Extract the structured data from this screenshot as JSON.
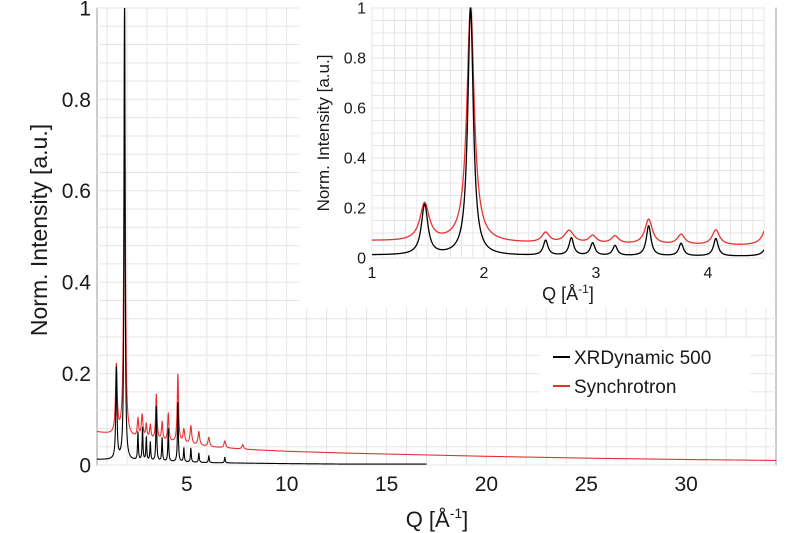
{
  "chart_data": [
    {
      "type": "line",
      "panel": "main",
      "xlabel": "Q [Å",
      "xlabel_sup": "-1",
      "xlabel_end": "]",
      "ylabel": "Norm. Intensity [a.u.]",
      "xlim": [
        0.5,
        34.5
      ],
      "ylim": [
        0,
        1.0
      ],
      "xticks": [
        5,
        10,
        15,
        20,
        25,
        30
      ],
      "yticks": [
        0,
        0.2,
        0.4,
        0.6,
        0.8,
        1
      ],
      "xtick_labels": [
        "5",
        "10",
        "15",
        "20",
        "25",
        "30"
      ],
      "ytick_labels": [
        "0",
        "0.2",
        "0.4",
        "0.6",
        "0.8",
        "1"
      ],
      "grid": true,
      "legend_position": "center-right",
      "series": [
        {
          "name": "XRDynamic 500",
          "color": "#000000",
          "baseline": {
            "x": [
              0.5,
              1.2,
              2,
              3,
              4,
              5,
              6,
              8,
              10,
              13,
              17
            ],
            "y": [
              0.012,
              0.011,
              0.009,
              0.008,
              0.007,
              0.006,
              0.005,
              0.004,
              0.003,
              0.002,
              0.002
            ]
          },
          "x_end": 17,
          "peaks": [
            {
              "x": 1.47,
              "h": 0.2,
              "w": 0.035
            },
            {
              "x": 1.88,
              "h": 0.99,
              "w": 0.03
            },
            {
              "x": 2.55,
              "h": 0.06,
              "w": 0.025
            },
            {
              "x": 2.78,
              "h": 0.07,
              "w": 0.025
            },
            {
              "x": 2.97,
              "h": 0.05,
              "w": 0.025
            },
            {
              "x": 3.17,
              "h": 0.04,
              "w": 0.025
            },
            {
              "x": 3.47,
              "h": 0.12,
              "w": 0.025
            },
            {
              "x": 3.76,
              "h": 0.05,
              "w": 0.025
            },
            {
              "x": 4.07,
              "h": 0.07,
              "w": 0.025
            },
            {
              "x": 4.55,
              "h": 0.13,
              "w": 0.025
            },
            {
              "x": 4.85,
              "h": 0.03,
              "w": 0.025
            },
            {
              "x": 5.2,
              "h": 0.03,
              "w": 0.025
            },
            {
              "x": 5.6,
              "h": 0.02,
              "w": 0.025
            },
            {
              "x": 6.1,
              "h": 0.015,
              "w": 0.025
            },
            {
              "x": 6.9,
              "h": 0.012,
              "w": 0.025
            }
          ]
        },
        {
          "name": "Synchrotron",
          "color": "#e83030",
          "baseline": {
            "x": [
              0.5,
              1.0,
              1.3,
              2,
              3,
              4,
              5,
              6,
              7,
              8,
              10,
              13,
              17,
              20,
              25,
              30,
              34.5
            ],
            "y": [
              0.072,
              0.068,
              0.065,
              0.06,
              0.055,
              0.05,
              0.045,
              0.04,
              0.037,
              0.034,
              0.03,
              0.026,
              0.022,
              0.019,
              0.015,
              0.012,
              0.01
            ]
          },
          "x_end": 34.5,
          "peaks": [
            {
              "x": 1.47,
              "h": 0.15,
              "w": 0.05
            },
            {
              "x": 1.88,
              "h": 0.94,
              "w": 0.04
            },
            {
              "x": 2.55,
              "h": 0.04,
              "w": 0.04
            },
            {
              "x": 2.76,
              "h": 0.05,
              "w": 0.05
            },
            {
              "x": 2.97,
              "h": 0.03,
              "w": 0.04
            },
            {
              "x": 3.17,
              "h": 0.03,
              "w": 0.04
            },
            {
              "x": 3.47,
              "h": 0.1,
              "w": 0.04
            },
            {
              "x": 3.76,
              "h": 0.04,
              "w": 0.04
            },
            {
              "x": 4.07,
              "h": 0.06,
              "w": 0.04
            },
            {
              "x": 4.55,
              "h": 0.15,
              "w": 0.04
            },
            {
              "x": 4.85,
              "h": 0.03,
              "w": 0.05
            },
            {
              "x": 5.2,
              "h": 0.04,
              "w": 0.05
            },
            {
              "x": 5.6,
              "h": 0.03,
              "w": 0.05
            },
            {
              "x": 6.1,
              "h": 0.02,
              "w": 0.05
            },
            {
              "x": 6.9,
              "h": 0.015,
              "w": 0.05
            },
            {
              "x": 7.8,
              "h": 0.01,
              "w": 0.05
            }
          ]
        }
      ]
    },
    {
      "type": "line",
      "panel": "inset",
      "xlabel": "Q [Å",
      "xlabel_sup": "-1",
      "xlabel_end": "]",
      "ylabel": "Norm. Intensity [a.u.]",
      "xlim": [
        1,
        4.5
      ],
      "ylim": [
        0,
        1.0
      ],
      "xticks": [
        1,
        2,
        3,
        4
      ],
      "yticks": [
        0,
        0.2,
        0.4,
        0.6,
        0.8,
        1
      ],
      "xtick_labels": [
        "1",
        "2",
        "3",
        "4"
      ],
      "ytick_labels": [
        "0",
        "0.2",
        "0.4",
        "0.6",
        "0.8",
        "1"
      ],
      "grid": true,
      "series_ref": [
        "XRDynamic 500",
        "Synchrotron"
      ]
    }
  ],
  "legend": {
    "items": [
      {
        "label": "XRDynamic 500",
        "color": "#000000"
      },
      {
        "label": "Synchrotron",
        "color": "#e83030"
      }
    ]
  }
}
